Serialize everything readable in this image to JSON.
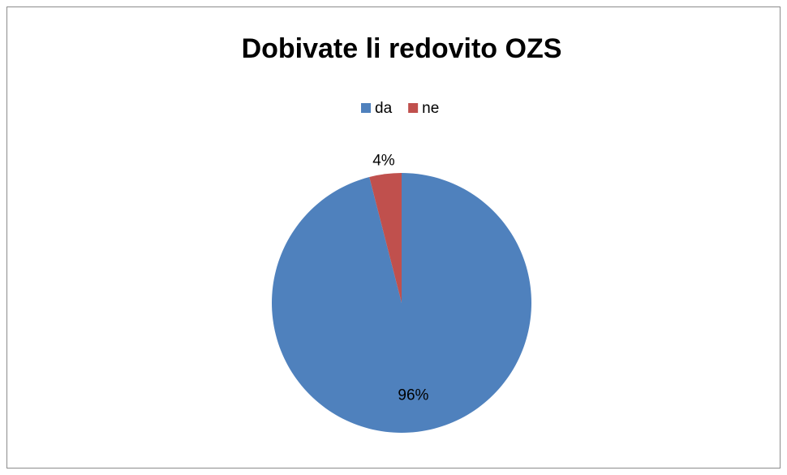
{
  "chart_data": {
    "type": "pie",
    "title": "Dobivate li redovito OZS",
    "categories": [
      "da",
      "ne"
    ],
    "values": [
      96,
      4
    ],
    "value_labels": [
      "96%",
      "4%"
    ],
    "colors": [
      "#4f81bd",
      "#c0504d"
    ],
    "legend": "top"
  }
}
